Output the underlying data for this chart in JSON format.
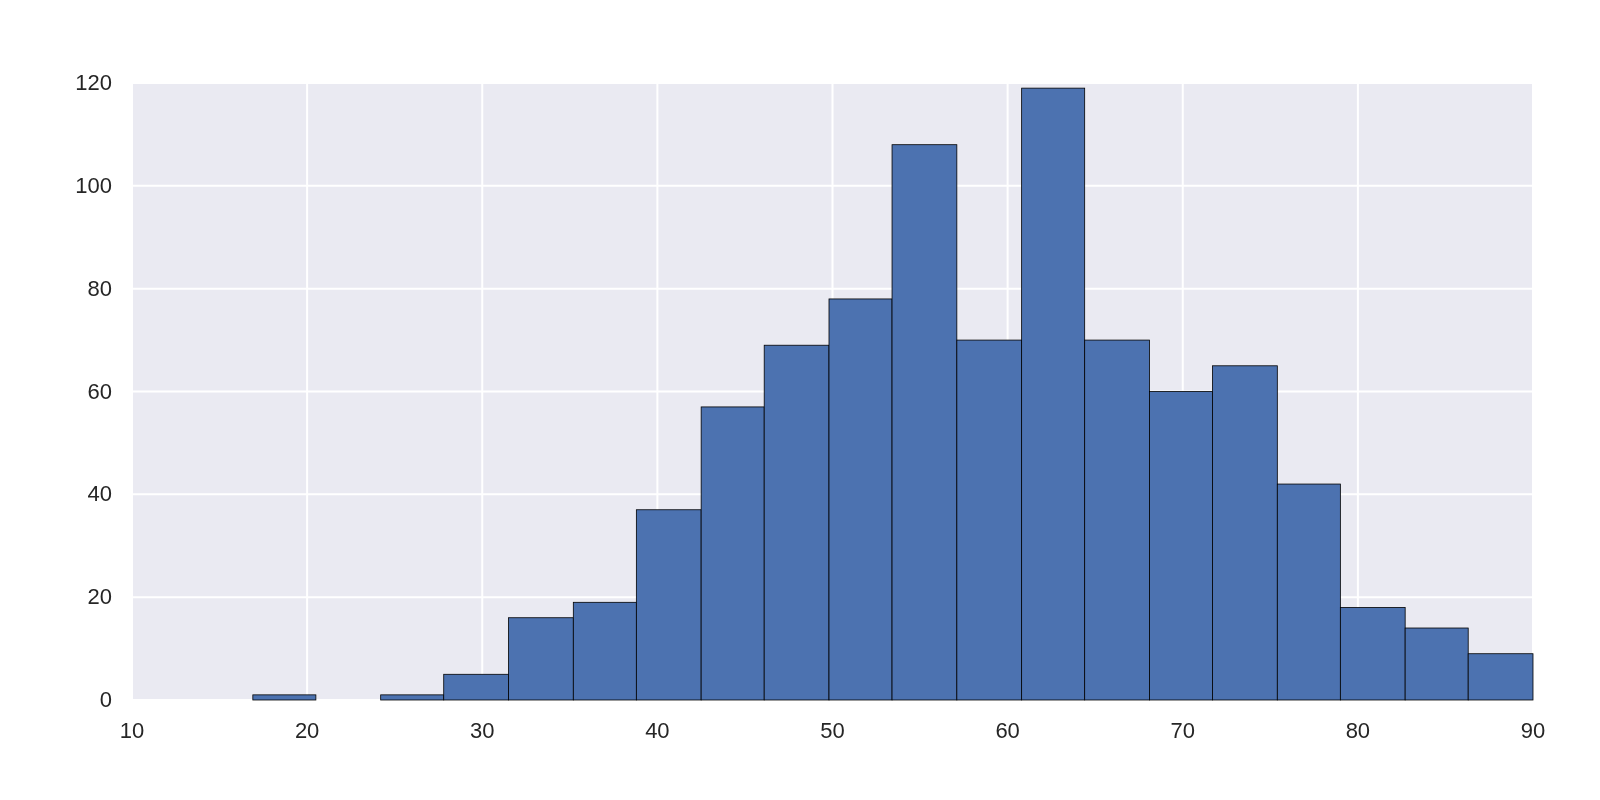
{
  "chart_data": {
    "type": "histogram",
    "bins": [
      16.9,
      20.5,
      24.2,
      27.8,
      31.5,
      35.2,
      38.8,
      42.5,
      46.1,
      49.8,
      53.4,
      57.1,
      60.8,
      64.4,
      68.1,
      71.7,
      75.4,
      79.0,
      82.7,
      86.3,
      90.0
    ],
    "values": [
      1,
      0,
      1,
      5,
      16,
      19,
      37,
      57,
      69,
      78,
      108,
      70,
      119,
      70,
      60,
      65,
      42,
      18,
      14,
      9
    ],
    "color": "#4c72b0",
    "xlim": [
      10,
      90
    ],
    "xticks": [
      10,
      20,
      30,
      40,
      50,
      60,
      70,
      80,
      90
    ],
    "ylim": [
      0,
      120
    ],
    "yticks": [
      0,
      20,
      40,
      60,
      80,
      100,
      120
    ],
    "grid": true
  }
}
